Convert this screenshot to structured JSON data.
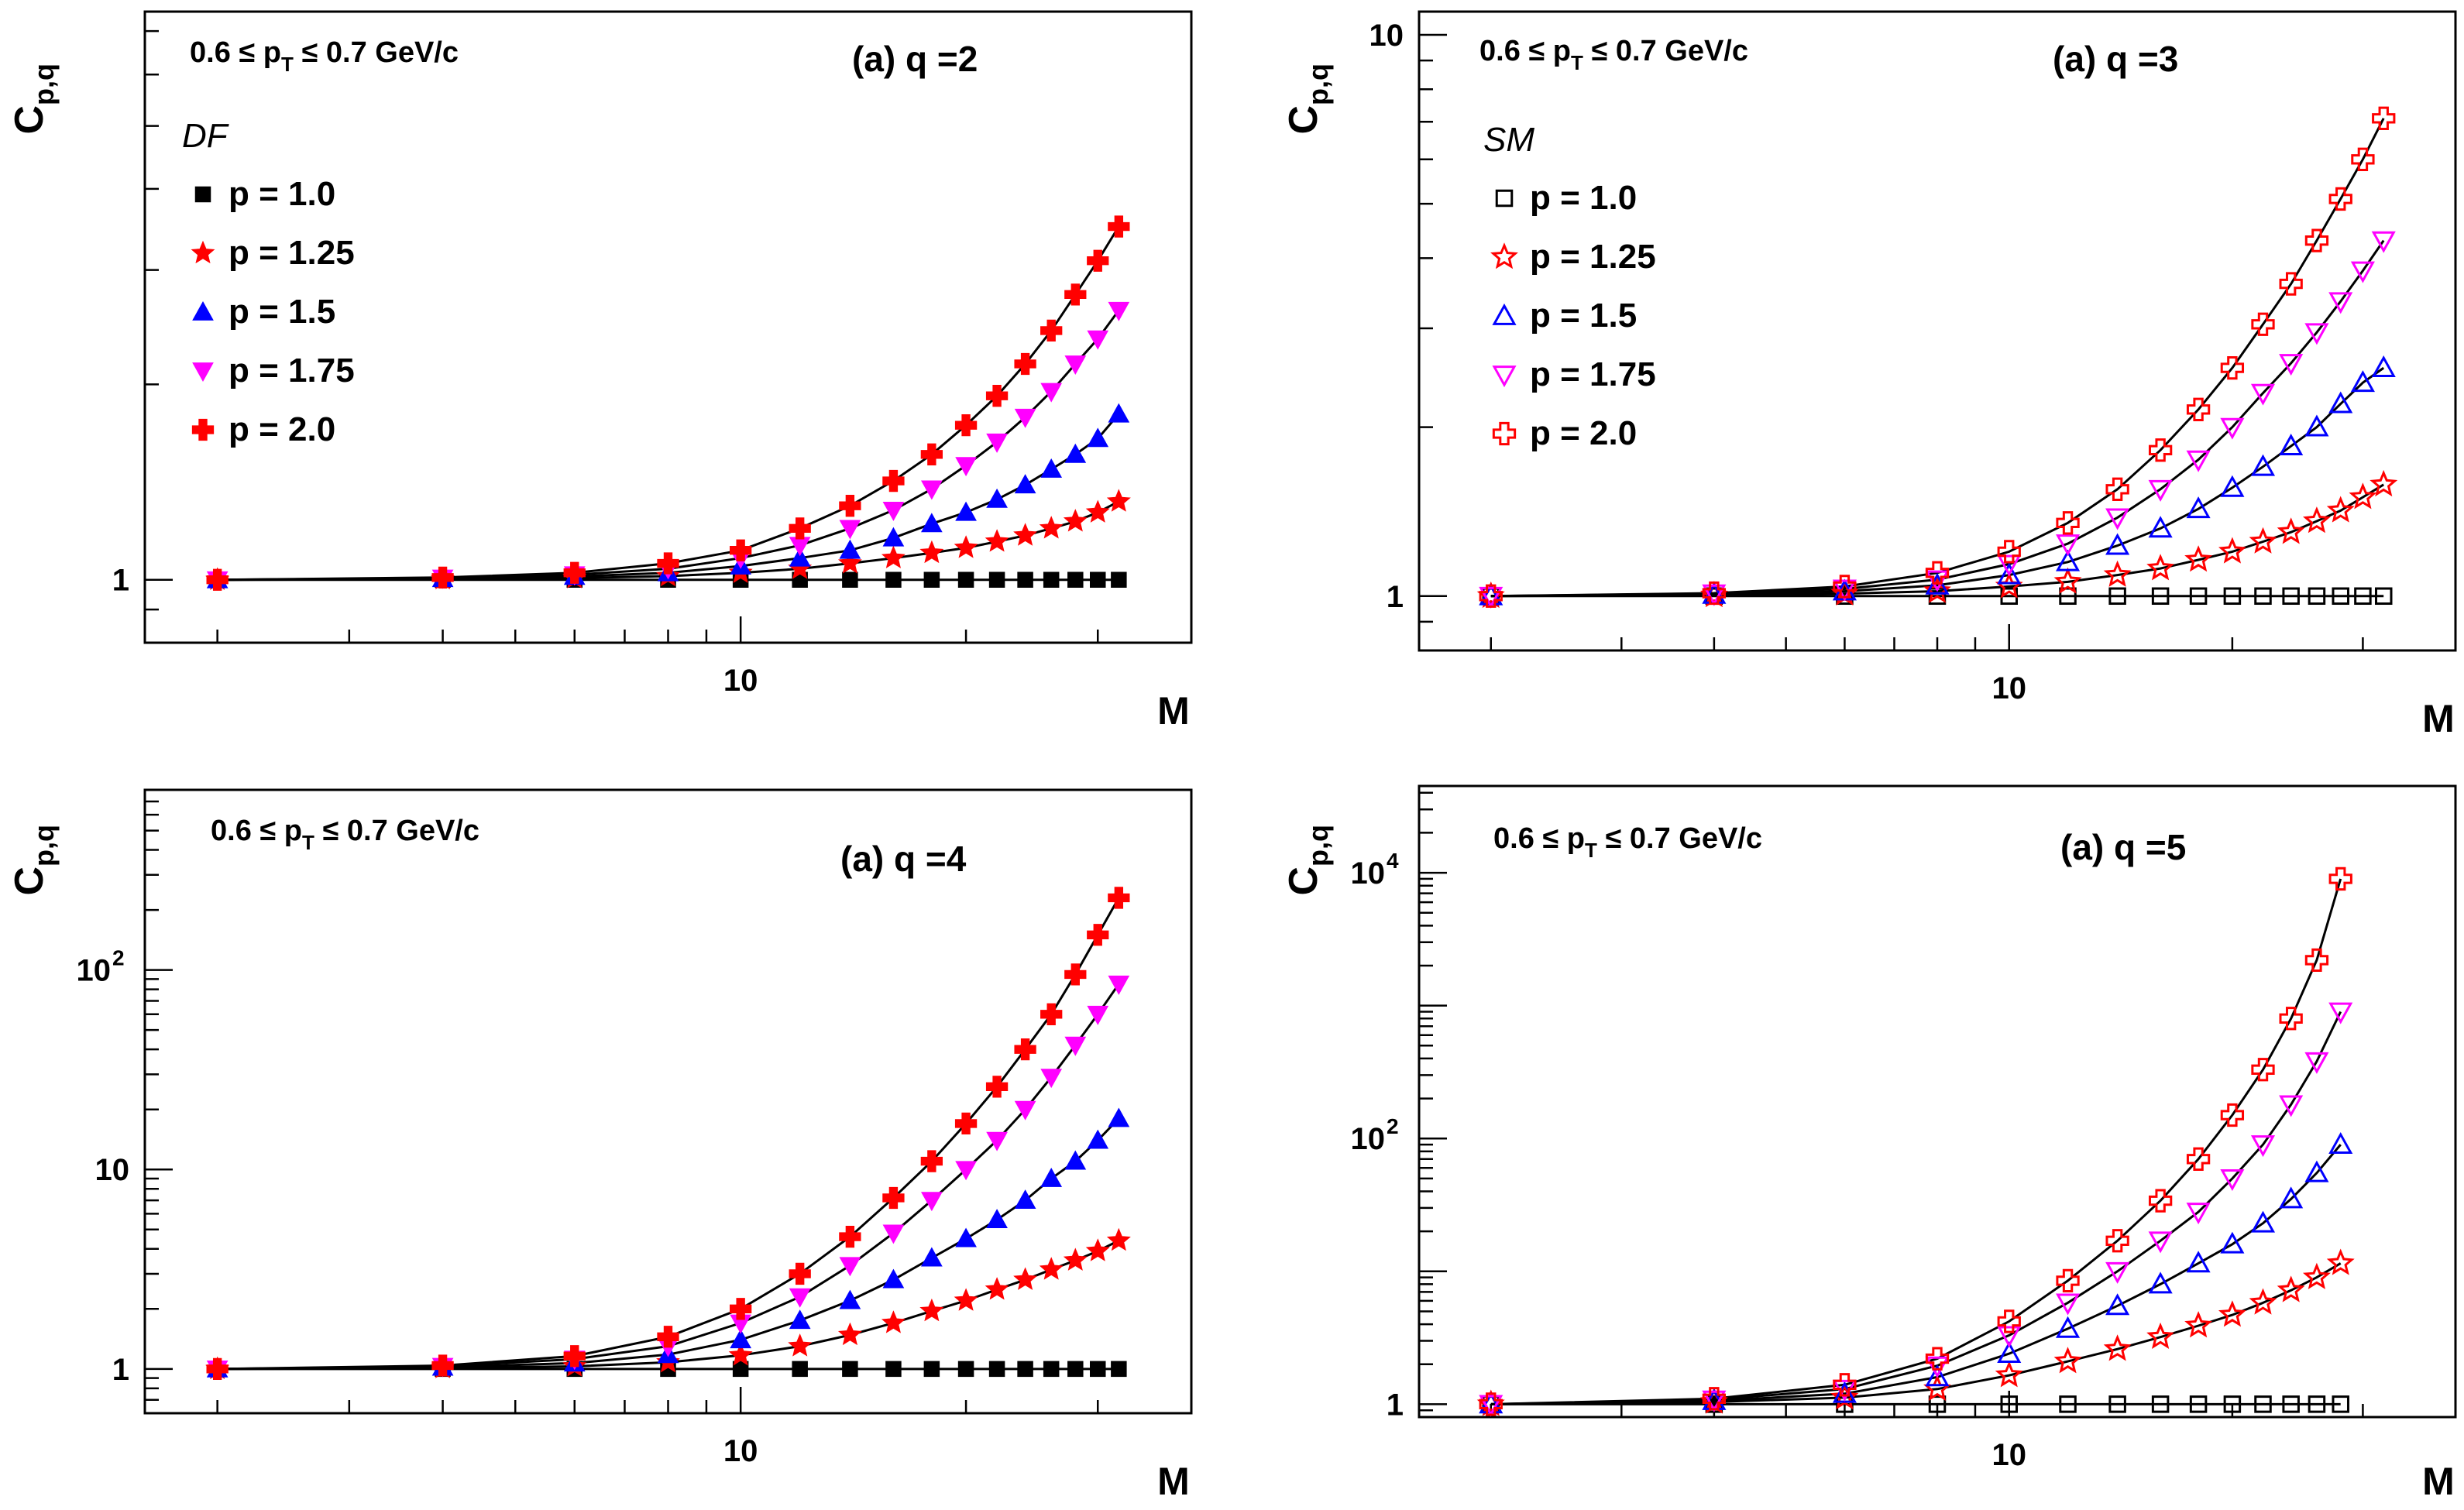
{
  "chart_data": [
    {
      "type": "scatter",
      "panel": "top-left",
      "title": "(a) q =2",
      "subtitle": "0.6 ≤ p_T ≤ 0.7 GeV/c",
      "cut_prefix": "0.6 ≤ p",
      "cut_sub": "T",
      "cut_suffix": " ≤ 0.7 GeV/c",
      "ylabel_main": "C",
      "ylabel_sub": "p,q",
      "xlabel": "M",
      "xscale": "log",
      "yscale": "log",
      "xlim": [
        1.6,
        40
      ],
      "ylim": [
        0.8,
        7.5
      ],
      "xticks": [
        {
          "value": 10,
          "label": "10"
        }
      ],
      "yticks": [
        {
          "value": 1,
          "label": "1"
        }
      ],
      "legend_title": "DF",
      "legend_placement": "top-left",
      "markers_open": false,
      "x": [
        2,
        4,
        6,
        8,
        10,
        12,
        14,
        16,
        18,
        20,
        22,
        24,
        26,
        28,
        30,
        32
      ],
      "series": [
        {
          "name": "p = 1.0",
          "label": "p = 1.0",
          "values": [
            1,
            1,
            1,
            1,
            1,
            1,
            1,
            1,
            1,
            1,
            1,
            1,
            1,
            1,
            1,
            1
          ]
        },
        {
          "name": "p = 1.25",
          "label": "p = 1.25",
          "values": [
            1,
            1.002,
            1.006,
            1.013,
            1.025,
            1.04,
            1.06,
            1.08,
            1.1,
            1.12,
            1.145,
            1.17,
            1.2,
            1.23,
            1.27,
            1.32
          ]
        },
        {
          "name": "p = 1.5",
          "label": "p = 1.5",
          "values": [
            1,
            1.004,
            1.012,
            1.025,
            1.05,
            1.08,
            1.11,
            1.16,
            1.22,
            1.27,
            1.33,
            1.4,
            1.48,
            1.56,
            1.65,
            1.8
          ]
        },
        {
          "name": "p = 1.75",
          "label": "p = 1.75",
          "values": [
            1,
            1.006,
            1.018,
            1.04,
            1.08,
            1.13,
            1.2,
            1.28,
            1.38,
            1.5,
            1.63,
            1.78,
            1.95,
            2.15,
            2.35,
            2.6
          ]
        },
        {
          "name": "p = 2.0",
          "label": "p = 2.0",
          "values": [
            1,
            1.008,
            1.025,
            1.06,
            1.11,
            1.2,
            1.3,
            1.42,
            1.56,
            1.73,
            1.92,
            2.15,
            2.42,
            2.75,
            3.1,
            3.5
          ]
        }
      ]
    },
    {
      "type": "scatter",
      "panel": "top-right",
      "title": "(a) q =3",
      "subtitle": "0.6 ≤ p_T ≤ 0.7 GeV/c",
      "cut_prefix": "0.6 ≤ p",
      "cut_sub": "T",
      "cut_suffix": " ≤ 0.7 GeV/c",
      "ylabel_main": "C",
      "ylabel_sub": "p,q",
      "xlabel": "M",
      "xscale": "log",
      "yscale": "log",
      "xlim": [
        1.6,
        40
      ],
      "ylim": [
        0.8,
        11
      ],
      "xticks": [
        {
          "value": 10,
          "label": "10"
        }
      ],
      "yticks": [
        {
          "value": 1,
          "label": "1"
        },
        {
          "value": 10,
          "label": "10"
        }
      ],
      "legend_title": "SM",
      "legend_placement": "top-left",
      "markers_open": true,
      "x": [
        2,
        4,
        6,
        8,
        10,
        12,
        14,
        16,
        18,
        20,
        22,
        24,
        26,
        28,
        30,
        32
      ],
      "series": [
        {
          "name": "p = 1.0",
          "label": "p = 1.0",
          "values": [
            1,
            1,
            1,
            1,
            1,
            1,
            1,
            1,
            1,
            1,
            1,
            1,
            1,
            1,
            1,
            1
          ]
        },
        {
          "name": "p = 1.25",
          "label": "p = 1.25",
          "values": [
            1,
            1.003,
            1.01,
            1.02,
            1.04,
            1.06,
            1.09,
            1.12,
            1.16,
            1.2,
            1.25,
            1.3,
            1.36,
            1.42,
            1.5,
            1.58
          ]
        },
        {
          "name": "p = 1.5",
          "label": "p = 1.5",
          "values": [
            1,
            1.006,
            1.02,
            1.045,
            1.09,
            1.15,
            1.23,
            1.32,
            1.43,
            1.56,
            1.7,
            1.85,
            2.0,
            2.2,
            2.4,
            2.55
          ]
        },
        {
          "name": "p = 1.75",
          "label": "p = 1.75",
          "values": [
            1,
            1.01,
            1.03,
            1.07,
            1.14,
            1.24,
            1.38,
            1.55,
            1.75,
            2.0,
            2.3,
            2.6,
            2.95,
            3.35,
            3.8,
            4.3
          ]
        },
        {
          "name": "p = 2.0",
          "label": "p = 2.0",
          "values": [
            1,
            1.012,
            1.04,
            1.1,
            1.2,
            1.35,
            1.55,
            1.82,
            2.15,
            2.55,
            3.05,
            3.6,
            4.3,
            5.1,
            6.0,
            7.1
          ]
        }
      ]
    },
    {
      "type": "scatter",
      "panel": "bottom-left",
      "title": "(a) q =4",
      "subtitle": "0.6 ≤ p_T ≤ 0.7 GeV/c",
      "cut_prefix": "0.6 ≤ p",
      "cut_sub": "T",
      "cut_suffix": " ≤ 0.7 GeV/c",
      "ylabel_main": "C",
      "ylabel_sub": "p,q",
      "xlabel": "M",
      "xscale": "log",
      "yscale": "log",
      "xlim": [
        1.6,
        40
      ],
      "ylim": [
        0.6,
        800
      ],
      "xticks": [
        {
          "value": 10,
          "label": "10"
        }
      ],
      "yticks": [
        {
          "value": 1,
          "label": "1"
        },
        {
          "value": 10,
          "label": "10"
        },
        {
          "value": 100,
          "label": "10",
          "exp": "2"
        }
      ],
      "legend_title": "",
      "legend_placement": "none",
      "markers_open": false,
      "x": [
        2,
        4,
        6,
        8,
        10,
        12,
        14,
        16,
        18,
        20,
        22,
        24,
        26,
        28,
        30,
        32
      ],
      "series": [
        {
          "name": "p = 1.0",
          "label": "p = 1.0",
          "values": [
            1,
            1,
            1,
            1,
            1,
            1,
            1,
            1,
            1,
            1,
            1,
            1,
            1,
            1,
            1,
            1
          ]
        },
        {
          "name": "p = 1.25",
          "label": "p = 1.25",
          "values": [
            1,
            1.01,
            1.03,
            1.08,
            1.17,
            1.3,
            1.48,
            1.7,
            1.95,
            2.2,
            2.5,
            2.8,
            3.15,
            3.5,
            3.9,
            4.4
          ]
        },
        {
          "name": "p = 1.5",
          "label": "p = 1.5",
          "values": [
            1,
            1.02,
            1.07,
            1.18,
            1.4,
            1.75,
            2.2,
            2.8,
            3.6,
            4.5,
            5.6,
            7,
            9,
            11,
            14,
            18
          ]
        },
        {
          "name": "p = 1.75",
          "label": "p = 1.75",
          "values": [
            1,
            1.03,
            1.12,
            1.3,
            1.7,
            2.3,
            3.3,
            4.8,
            7,
            10,
            14,
            20,
            29,
            42,
            60,
            85
          ]
        },
        {
          "name": "p = 2.0",
          "label": "p = 2.0",
          "values": [
            1,
            1.04,
            1.16,
            1.45,
            2.0,
            3.0,
            4.6,
            7.2,
            11,
            17,
            26,
            40,
            60,
            95,
            150,
            230
          ]
        }
      ]
    },
    {
      "type": "scatter",
      "panel": "bottom-right",
      "title": "(a) q =5",
      "subtitle": "0.6 ≤ p_T ≤ 0.7 GeV/c",
      "cut_prefix": "0.6 ≤ p",
      "cut_sub": "T",
      "cut_suffix": " ≤ 0.7 GeV/c",
      "ylabel_main": "C",
      "ylabel_sub": "p,q",
      "xlabel": "M",
      "xscale": "log",
      "yscale": "log",
      "xlim": [
        1.6,
        40
      ],
      "ylim": [
        0.8,
        45000
      ],
      "xticks": [
        {
          "value": 10,
          "label": "10"
        }
      ],
      "yticks": [
        {
          "value": 1,
          "label": "1"
        },
        {
          "value": 100,
          "label": "10",
          "exp": "2"
        },
        {
          "value": 10000,
          "label": "10",
          "exp": "4"
        }
      ],
      "legend_title": "",
      "legend_placement": "none",
      "markers_open": true,
      "x": [
        2,
        4,
        6,
        8,
        10,
        12,
        14,
        16,
        18,
        20,
        22,
        24,
        26,
        28
      ],
      "series": [
        {
          "name": "p = 1.0",
          "label": "p = 1.0",
          "values": [
            1,
            1,
            1,
            1,
            1,
            1,
            1,
            1,
            1,
            1,
            1,
            1,
            1,
            1
          ]
        },
        {
          "name": "p = 1.25",
          "label": "p = 1.25",
          "values": [
            1,
            1.04,
            1.12,
            1.3,
            1.65,
            2.1,
            2.6,
            3.2,
            3.9,
            4.7,
            5.8,
            7.2,
            9,
            11.5
          ]
        },
        {
          "name": "p = 1.5",
          "label": "p = 1.5",
          "values": [
            1,
            1.06,
            1.2,
            1.6,
            2.4,
            3.7,
            5.5,
            8,
            11.5,
            16,
            23,
            35,
            55,
            90
          ]
        },
        {
          "name": "p = 1.75",
          "label": "p = 1.75",
          "values": [
            1,
            1.08,
            1.3,
            1.95,
            3.3,
            5.8,
            10,
            17,
            28,
            50,
            90,
            180,
            380,
            900
          ]
        },
        {
          "name": "p = 2.0",
          "label": "p = 2.0",
          "values": [
            1,
            1.1,
            1.4,
            2.2,
            4.2,
            8.5,
            17,
            34,
            70,
            150,
            330,
            800,
            2200,
            9000
          ]
        }
      ]
    }
  ],
  "series_colors": [
    "#000000",
    "#ff0000",
    "#0000ff",
    "#ff00ff",
    "#ff0000"
  ],
  "series_markers": [
    "square",
    "star",
    "triangle-up",
    "triangle-down",
    "cross"
  ],
  "fit_line_color": "#000000"
}
